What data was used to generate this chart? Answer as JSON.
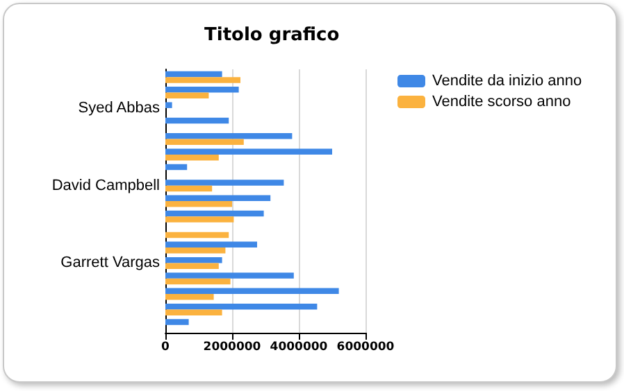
{
  "chart_data": {
    "type": "bar",
    "orientation": "horizontal",
    "title": "Titolo grafico",
    "categories": [
      null,
      null,
      "Syed Abbas",
      null,
      null,
      null,
      null,
      "David Campbell",
      null,
      null,
      null,
      null,
      "Garrett Vargas",
      null,
      null,
      null,
      null
    ],
    "series": [
      {
        "name": "Vendite da inizio anno",
        "color": "#3f88e6",
        "values": [
          1700000,
          2200000,
          200000,
          1900000,
          3800000,
          5000000,
          650000,
          3550000,
          3150000,
          2950000,
          null,
          2750000,
          1700000,
          3850000,
          5200000,
          4550000,
          700000
        ]
      },
      {
        "name": "Vendite scorso anno",
        "color": "#fbb23f",
        "values": [
          2250000,
          1300000,
          null,
          null,
          2350000,
          1600000,
          null,
          1400000,
          2000000,
          2050000,
          1900000,
          1800000,
          1600000,
          1950000,
          1450000,
          1700000,
          null
        ]
      }
    ],
    "xlim": [
      0,
      6000000
    ],
    "xticks": [
      0,
      2000000,
      4000000,
      6000000
    ],
    "grid": "x",
    "legend": "top right"
  }
}
